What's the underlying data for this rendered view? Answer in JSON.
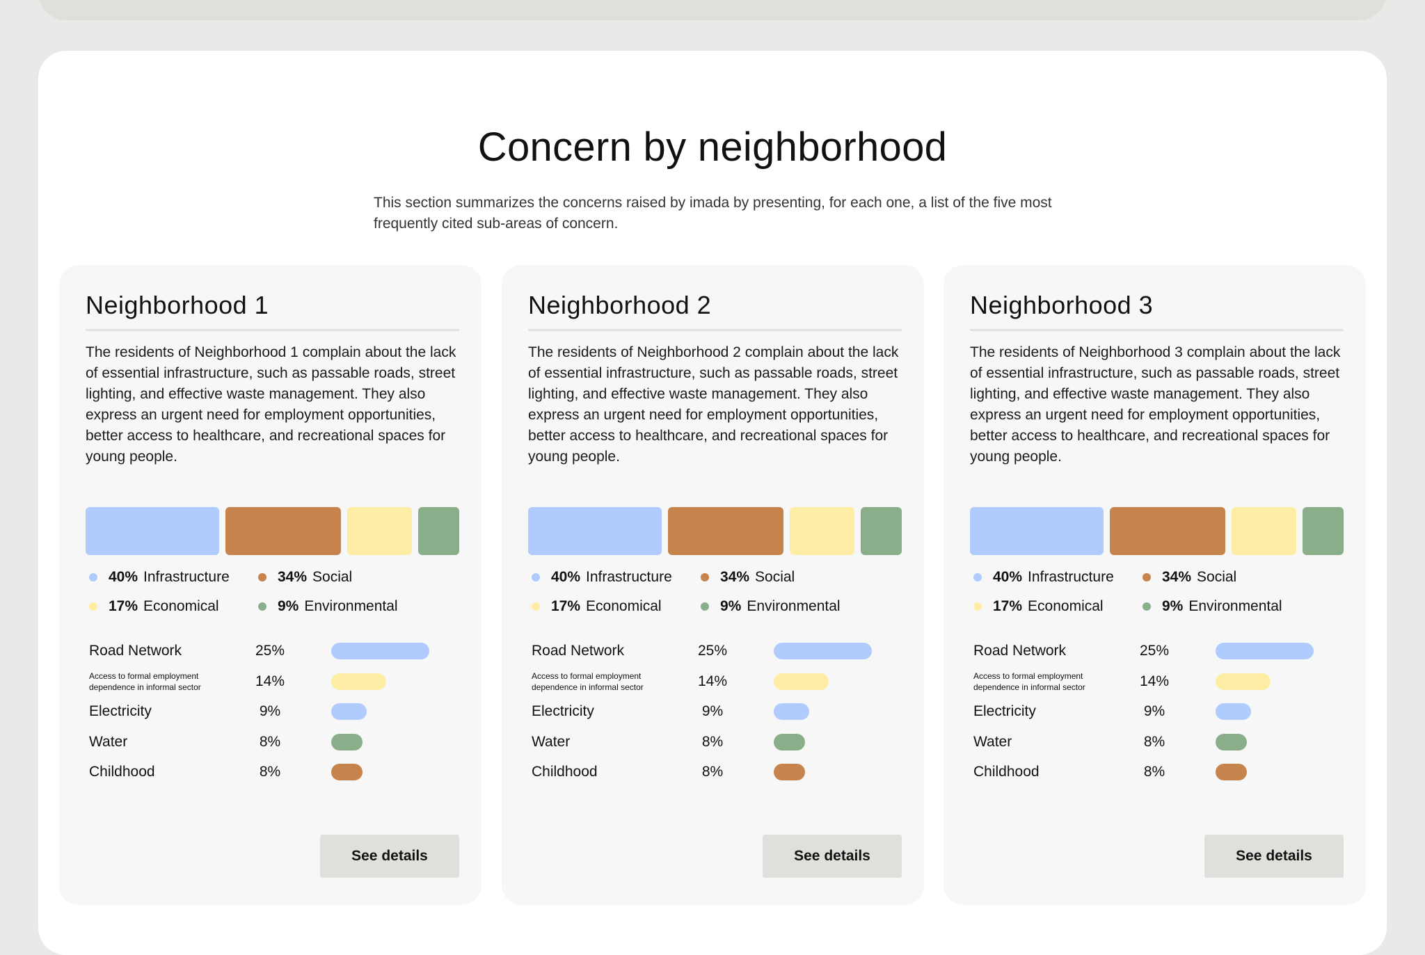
{
  "colors": {
    "infrastructure": "#b0cbfd",
    "social": "#c6834b",
    "economical": "#feeda4",
    "environmental": "#8aae8a"
  },
  "section": {
    "title": "Concern by neighborhood",
    "subtitle": "This section summarizes the concerns raised by imada by presenting, for each one, a list of the five most frequently cited sub-areas of concern."
  },
  "cards": [
    {
      "title": "Neighborhood 1",
      "description": "The residents of Neighborhood 1 complain about the lack of essential infrastructure, such as passable roads, street lighting, and effective waste management. They also express an urgent need for employment opportunities, better access to healthcare, and recreational spaces for young people.",
      "categories": [
        {
          "pct": "40%",
          "value": 40,
          "label": "Infrastructure",
          "color": "infrastructure"
        },
        {
          "pct": "34%",
          "value": 34,
          "label": "Social",
          "color": "social"
        },
        {
          "pct": "17%",
          "value": 17,
          "label": "Economical",
          "color": "economical"
        },
        {
          "pct": "9%",
          "value": 9,
          "label": "Environmental",
          "color": "environmental"
        }
      ],
      "subareas": [
        {
          "label": "Road Network",
          "pct": "25%",
          "value": 25,
          "color": "infrastructure"
        },
        {
          "label": "Access to formal employment dependence in informal sector",
          "pct": "14%",
          "value": 14,
          "color": "economical",
          "small": true
        },
        {
          "label": "Electricity",
          "pct": "9%",
          "value": 9,
          "color": "infrastructure"
        },
        {
          "label": "Water",
          "pct": "8%",
          "value": 8,
          "color": "environmental"
        },
        {
          "label": "Childhood",
          "pct": "8%",
          "value": 8,
          "color": "social"
        }
      ],
      "button": "See details"
    },
    {
      "title": "Neighborhood 2",
      "description": "The residents of Neighborhood 2 complain about the lack of essential infrastructure, such as passable roads, street lighting, and effective waste management. They also express an urgent need for employment opportunities, better access to healthcare, and recreational spaces for young people.",
      "categories": [
        {
          "pct": "40%",
          "value": 40,
          "label": "Infrastructure",
          "color": "infrastructure"
        },
        {
          "pct": "34%",
          "value": 34,
          "label": "Social",
          "color": "social"
        },
        {
          "pct": "17%",
          "value": 17,
          "label": "Economical",
          "color": "economical"
        },
        {
          "pct": "9%",
          "value": 9,
          "label": "Environmental",
          "color": "environmental"
        }
      ],
      "subareas": [
        {
          "label": "Road Network",
          "pct": "25%",
          "value": 25,
          "color": "infrastructure"
        },
        {
          "label": "Access to formal employment dependence in informal sector",
          "pct": "14%",
          "value": 14,
          "color": "economical",
          "small": true
        },
        {
          "label": "Electricity",
          "pct": "9%",
          "value": 9,
          "color": "infrastructure"
        },
        {
          "label": "Water",
          "pct": "8%",
          "value": 8,
          "color": "environmental"
        },
        {
          "label": "Childhood",
          "pct": "8%",
          "value": 8,
          "color": "social"
        }
      ],
      "button": "See details"
    },
    {
      "title": "Neighborhood 3",
      "description": "The residents of Neighborhood 3 complain about the lack of essential infrastructure, such as passable roads, street lighting, and effective waste management. They also express an urgent need for employment opportunities, better access to healthcare, and recreational spaces for young people.",
      "categories": [
        {
          "pct": "40%",
          "value": 40,
          "label": "Infrastructure",
          "color": "infrastructure"
        },
        {
          "pct": "34%",
          "value": 34,
          "label": "Social",
          "color": "social"
        },
        {
          "pct": "17%",
          "value": 17,
          "label": "Economical",
          "color": "economical"
        },
        {
          "pct": "9%",
          "value": 9,
          "label": "Environmental",
          "color": "environmental"
        }
      ],
      "subareas": [
        {
          "label": "Road Network",
          "pct": "25%",
          "value": 25,
          "color": "infrastructure"
        },
        {
          "label": "Access to formal employment dependence in informal sector",
          "pct": "14%",
          "value": 14,
          "color": "economical",
          "small": true
        },
        {
          "label": "Electricity",
          "pct": "9%",
          "value": 9,
          "color": "infrastructure"
        },
        {
          "label": "Water",
          "pct": "8%",
          "value": 8,
          "color": "environmental"
        },
        {
          "label": "Childhood",
          "pct": "8%",
          "value": 8,
          "color": "social"
        }
      ],
      "button": "See details"
    }
  ]
}
